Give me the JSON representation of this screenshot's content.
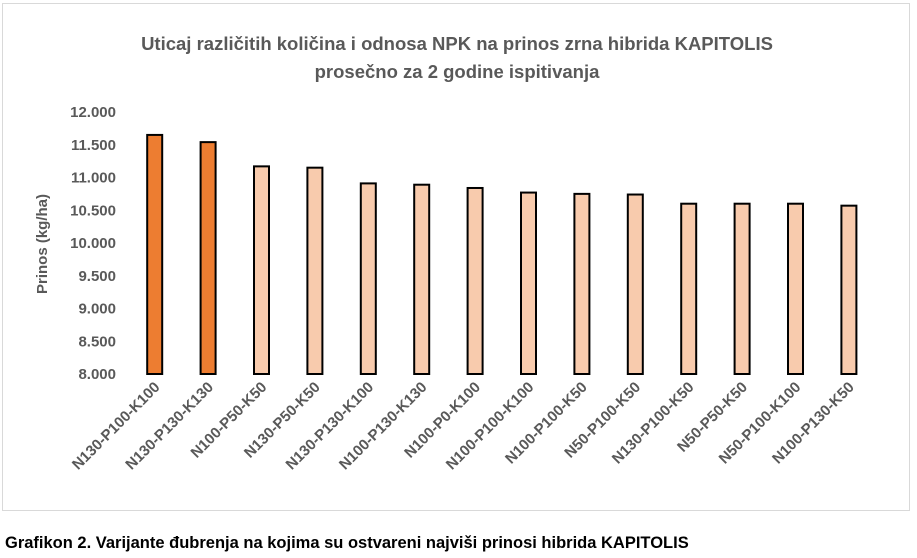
{
  "chart_data": {
    "type": "bar",
    "title": [
      "Uticaj različitih količina i odnosa NPK na prinos zrna hibrida KAPITOLIS",
      "prosečno za 2 godine ispitivanja"
    ],
    "ylabel": "Prinos (kg/ha)",
    "xlabel": "",
    "ylim": [
      8000,
      12000
    ],
    "yticks": [
      8000,
      8500,
      9000,
      9500,
      10000,
      10500,
      11000,
      11500,
      12000
    ],
    "ytick_labels": [
      "8.000",
      "8.500",
      "9.000",
      "9.500",
      "10.000",
      "10.500",
      "11.000",
      "11.500",
      "12.000"
    ],
    "grid": false,
    "legend": "none",
    "categories": [
      "N130-P100-K100",
      "N130-P130-K130",
      "N100-P50-K50",
      "N130-P50-K50",
      "N130-P130-K100",
      "N100-P130-K130",
      "N100-P0-K100",
      "N100-P100-K100",
      "N100-P100-K50",
      "N50-P100-K50",
      "N130-P100-K50",
      "N50-P50-K50",
      "N50-P100-K100",
      "N100-P130-K50"
    ],
    "values": [
      11650,
      11540,
      11170,
      11150,
      10910,
      10890,
      10840,
      10770,
      10750,
      10740,
      10600,
      10600,
      10600,
      10570
    ],
    "highlight_count": 2,
    "colors": {
      "highlight": "#ED7D31",
      "normal": "#F8CBAD",
      "outline": "#000000",
      "text": "#595959"
    }
  },
  "caption": "Grafikon 2. Varijante đubrenja na kojima su ostvareni najviši prinosi hibrida KAPITOLIS"
}
